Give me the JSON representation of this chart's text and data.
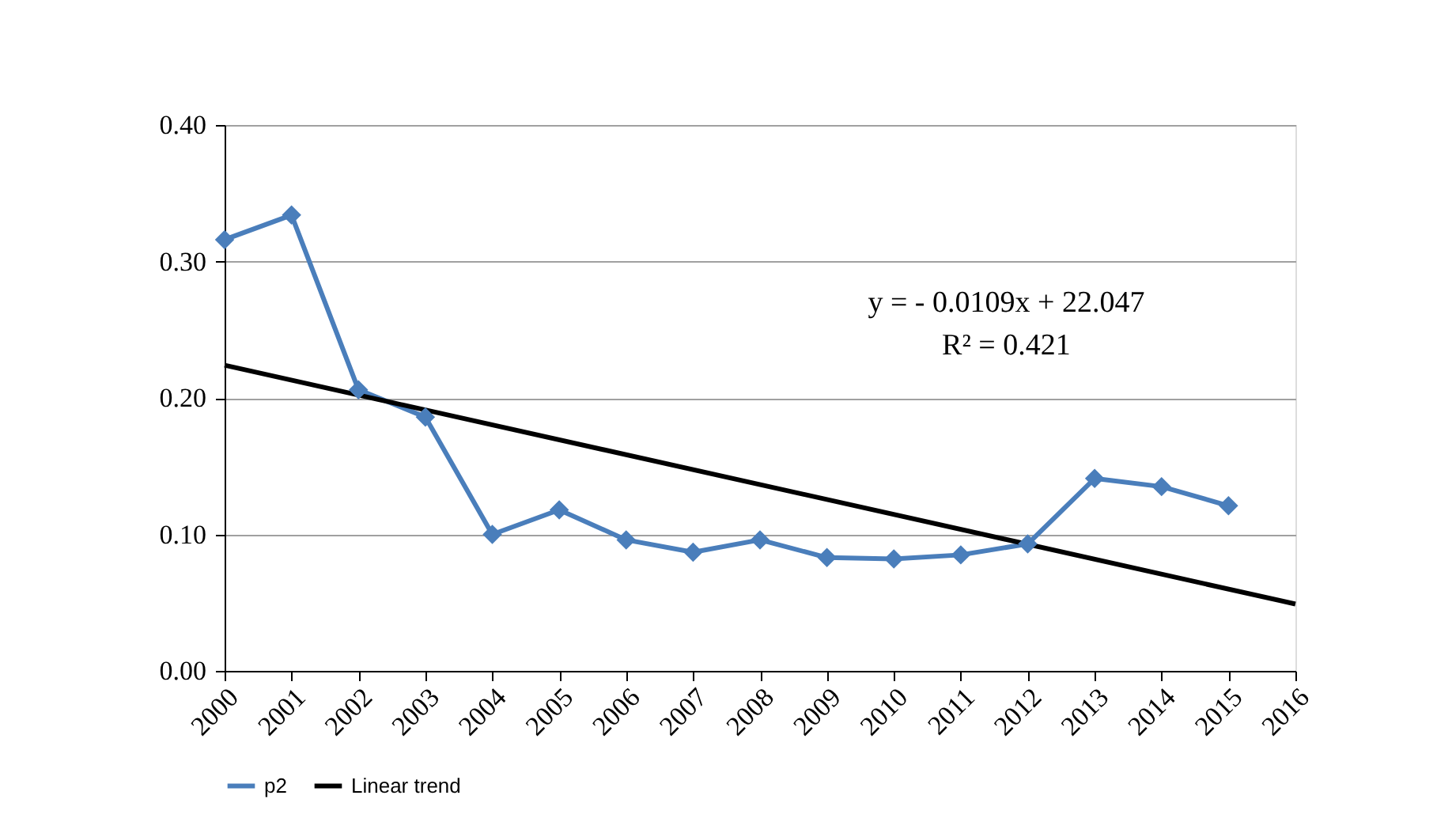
{
  "chart_data": {
    "type": "line",
    "x": [
      2000,
      2001,
      2002,
      2003,
      2004,
      2005,
      2006,
      2007,
      2008,
      2009,
      2010,
      2011,
      2012,
      2013,
      2014,
      2015
    ],
    "series": [
      {
        "name": "p2",
        "color": "#4a7ebb",
        "marker": "diamond",
        "values": [
          0.316,
          0.334,
          0.206,
          0.186,
          0.1,
          0.118,
          0.096,
          0.087,
          0.096,
          0.083,
          0.082,
          0.085,
          0.093,
          0.141,
          0.135,
          0.121
        ]
      },
      {
        "name": "Linear trend",
        "type": "line",
        "color": "#000000",
        "marker": "none",
        "x": [
          2000,
          2016
        ],
        "values": [
          0.224,
          0.049
        ]
      }
    ],
    "xlim": [
      2000,
      2016
    ],
    "xticks": [
      2000,
      2001,
      2002,
      2003,
      2004,
      2005,
      2006,
      2007,
      2008,
      2009,
      2010,
      2011,
      2012,
      2013,
      2014,
      2015,
      2016
    ],
    "ylim": [
      0,
      0.4
    ],
    "yticks": [
      {
        "value": 0,
        "label": "0.00"
      },
      {
        "value": 0.1,
        "label": "0.10"
      },
      {
        "value": 0.2,
        "label": "0.20"
      },
      {
        "value": 0.3,
        "label": "0.30"
      },
      {
        "value": 0.4,
        "label": "0.40"
      }
    ],
    "grid": "y",
    "legend": "bottom",
    "annotations": [
      "y = - 0.0109x + 22.047",
      "R² = 0.421"
    ]
  }
}
